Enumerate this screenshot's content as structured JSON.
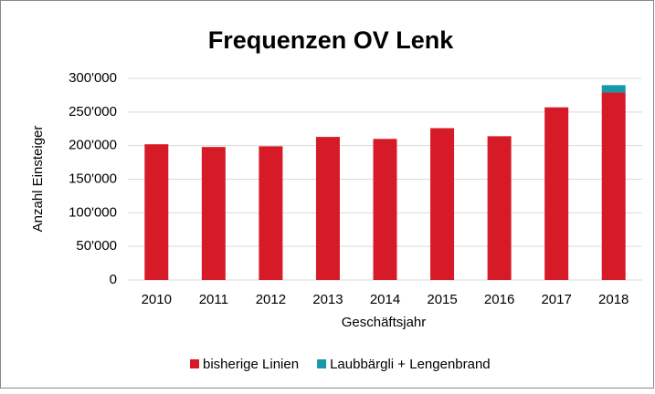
{
  "chart_data": {
    "type": "stacked_bar",
    "title": "Frequenzen OV Lenk",
    "y_label": "Anzahl Einsteiger",
    "x_label": "Geschäftsjahr",
    "categories": [
      "2010",
      "2011",
      "2012",
      "2013",
      "2014",
      "2015",
      "2016",
      "2017",
      "2018"
    ],
    "series": [
      {
        "name": "bisherige Linien",
        "color": "#d71a28",
        "values": [
          202000,
          198000,
          199000,
          213000,
          210000,
          226000,
          214000,
          257000,
          279000
        ]
      },
      {
        "name": "Laubbärgli + Lengenbrand",
        "color": "#1899ab",
        "values": [
          null,
          null,
          null,
          null,
          null,
          null,
          null,
          null,
          11000
        ]
      }
    ],
    "ylim": [
      0,
      300000
    ],
    "yticks": [
      0,
      {
        "value": 50000,
        "label": "50'000"
      },
      {
        "value": 100000,
        "label": "100'000"
      },
      {
        "value": 150000,
        "label": "150'000"
      },
      {
        "value": 200000,
        "label": "200'000"
      },
      {
        "value": 250000,
        "label": "250'000"
      },
      {
        "value": 300000,
        "label": "300'000"
      }
    ],
    "grid": true,
    "legend": "bottom"
  }
}
